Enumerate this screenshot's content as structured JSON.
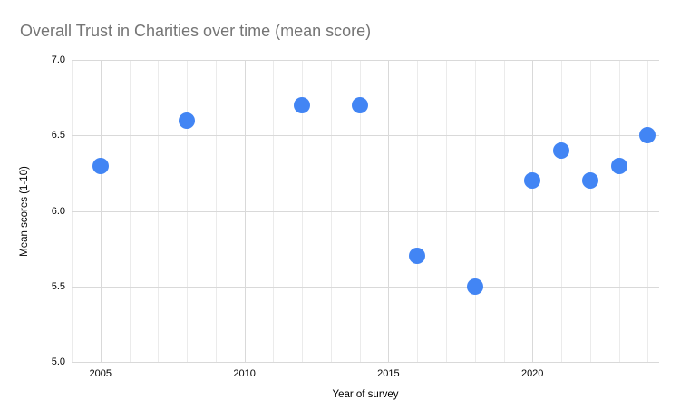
{
  "chart_data": {
    "type": "scatter",
    "title": "Overall Trust in Charities over time (mean score)",
    "xlabel": "Year of survey",
    "ylabel": "Mean scores (1-10)",
    "points": [
      {
        "year": 2005,
        "score": 6.3
      },
      {
        "year": 2008,
        "score": 6.6
      },
      {
        "year": 2012,
        "score": 6.7
      },
      {
        "year": 2014,
        "score": 6.7
      },
      {
        "year": 2016,
        "score": 5.7
      },
      {
        "year": 2018,
        "score": 5.5
      },
      {
        "year": 2020,
        "score": 6.2
      },
      {
        "year": 2021,
        "score": 6.4
      },
      {
        "year": 2022,
        "score": 6.2
      },
      {
        "year": 2023,
        "score": 6.3
      },
      {
        "year": 2024,
        "score": 6.5
      }
    ],
    "xlim": [
      2004,
      2024.4
    ],
    "ylim": [
      5.0,
      7.0
    ],
    "x_ticks": [
      "2005",
      "2010",
      "2015",
      "2020"
    ],
    "y_ticks": [
      "5.0",
      "5.5",
      "6.0",
      "6.5",
      "7.0"
    ],
    "x_grid_step": 1,
    "grid": true,
    "legend": "none",
    "colors": {
      "point": "#4285F4",
      "title": "#757575",
      "tick_label": "#000000",
      "major_gridline": "#d9d9d9",
      "minor_gridline": "#ebebeb"
    }
  }
}
